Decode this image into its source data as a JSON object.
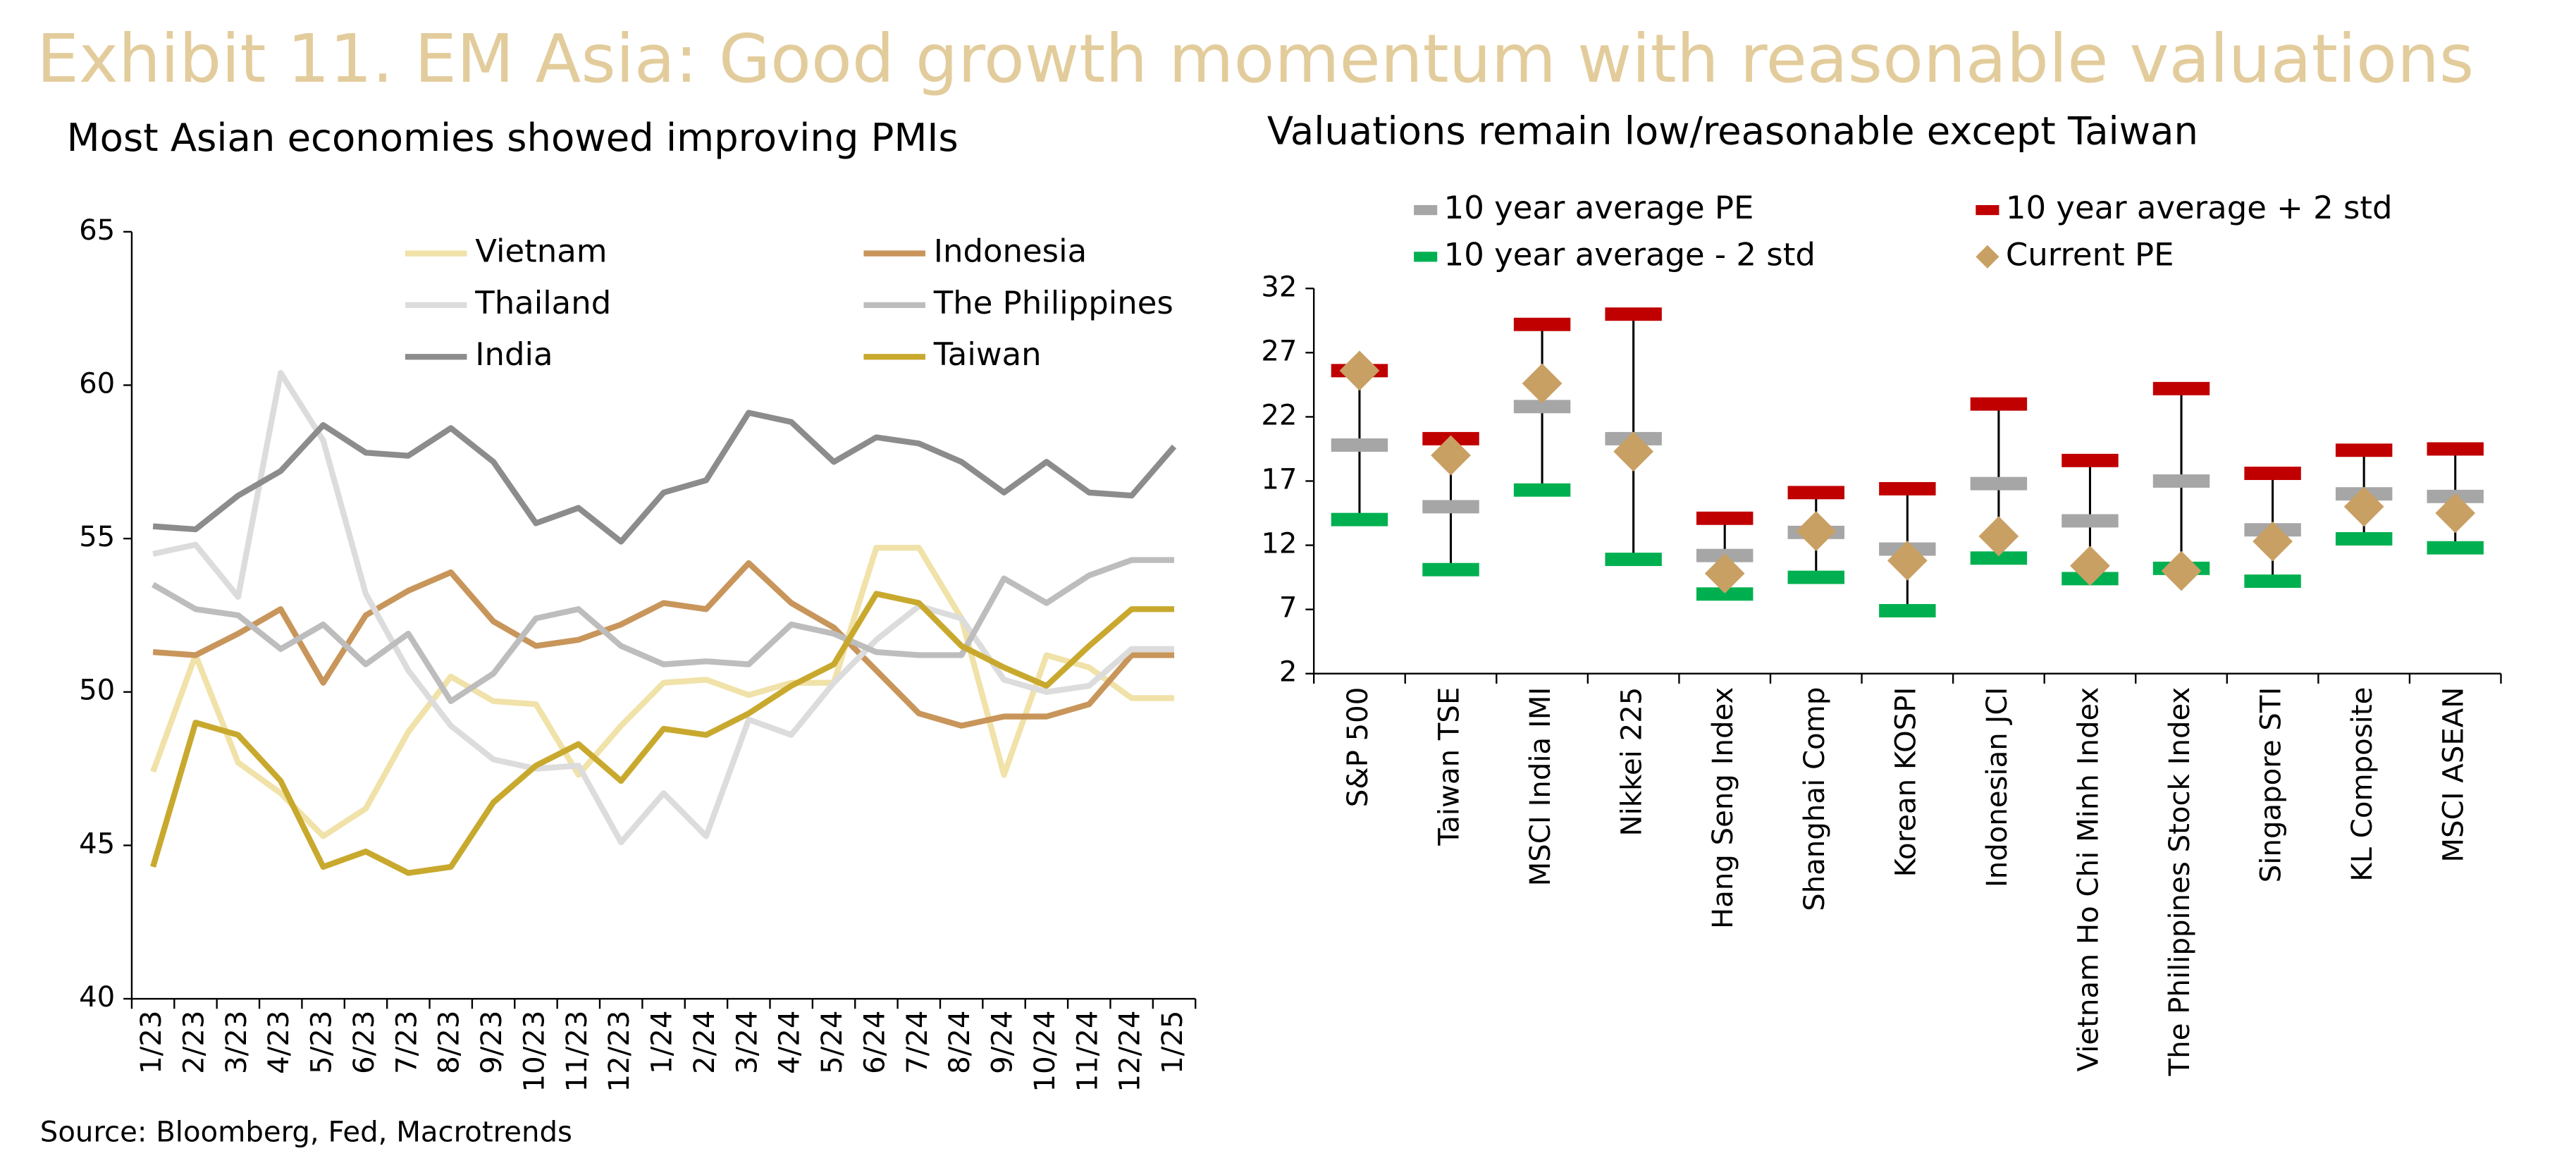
{
  "title": "Exhibit 11. EM Asia: Good growth momentum with reasonable valuations",
  "source": "Source: Bloomberg, Fed, Macrotrends",
  "chart_data": [
    {
      "type": "line",
      "title": "Most Asian economies showed improving PMIs",
      "categories": [
        "1/23",
        "2/23",
        "3/23",
        "4/23",
        "5/23",
        "6/23",
        "7/23",
        "8/23",
        "9/23",
        "10/23",
        "11/23",
        "12/23",
        "1/24",
        "2/24",
        "3/24",
        "4/24",
        "5/24",
        "6/24",
        "7/24",
        "8/24",
        "9/24",
        "10/24",
        "11/24",
        "12/24",
        "1/25"
      ],
      "ylim": [
        40,
        65
      ],
      "yticks": [
        40,
        45,
        50,
        55,
        60,
        65
      ],
      "series": [
        {
          "name": "Vietnam",
          "color": "#f0e2a8",
          "values": [
            47.4,
            51.2,
            47.7,
            46.7,
            45.3,
            46.2,
            48.7,
            50.5,
            49.7,
            49.6,
            47.3,
            48.9,
            50.3,
            50.4,
            49.9,
            50.3,
            50.3,
            54.7,
            54.7,
            52.4,
            47.3,
            51.2,
            50.8,
            49.8,
            49.8
          ]
        },
        {
          "name": "Indonesia",
          "color": "#c8955a",
          "values": [
            51.3,
            51.2,
            51.9,
            52.7,
            50.3,
            52.5,
            53.3,
            53.9,
            52.3,
            51.5,
            51.7,
            52.2,
            52.9,
            52.7,
            54.2,
            52.9,
            52.1,
            50.7,
            49.3,
            48.9,
            49.2,
            49.2,
            49.6,
            51.2,
            51.2
          ]
        },
        {
          "name": "Thailand",
          "color": "#dcdcdc",
          "values": [
            54.5,
            54.8,
            53.1,
            60.4,
            58.2,
            53.2,
            50.7,
            48.9,
            47.8,
            47.5,
            47.6,
            45.1,
            46.7,
            45.3,
            49.1,
            48.6,
            50.3,
            51.7,
            52.8,
            52.4,
            50.4,
            50.0,
            50.2,
            51.4,
            51.4
          ]
        },
        {
          "name": "The Philippines",
          "color": "#bdbdbd",
          "values": [
            53.5,
            52.7,
            52.5,
            51.4,
            52.2,
            50.9,
            51.9,
            49.7,
            50.6,
            52.4,
            52.7,
            51.5,
            50.9,
            51.0,
            50.9,
            52.2,
            51.9,
            51.3,
            51.2,
            51.2,
            53.7,
            52.9,
            53.8,
            54.3,
            54.3
          ]
        },
        {
          "name": "India",
          "color": "#8c8c8c",
          "values": [
            55.4,
            55.3,
            56.4,
            57.2,
            58.7,
            57.8,
            57.7,
            58.6,
            57.5,
            55.5,
            56.0,
            54.9,
            56.5,
            56.9,
            59.1,
            58.8,
            57.5,
            58.3,
            58.1,
            57.5,
            56.5,
            57.5,
            56.5,
            56.4,
            58.0
          ]
        },
        {
          "name": "Taiwan",
          "color": "#c8a92e",
          "values": [
            44.3,
            49.0,
            48.6,
            47.1,
            44.3,
            44.8,
            44.1,
            44.3,
            46.4,
            47.6,
            48.3,
            47.1,
            48.8,
            48.6,
            49.3,
            50.2,
            50.9,
            53.2,
            52.9,
            51.5,
            50.8,
            50.2,
            51.5,
            52.7,
            52.7
          ]
        }
      ]
    },
    {
      "type": "range",
      "title": "Valuations remain low/reasonable except Taiwan",
      "categories": [
        "S&P 500",
        "Taiwan TSE",
        "MSCI India IMI",
        "Nikkei 225",
        "Hang Seng Index",
        "Shanghai Comp",
        "Korean KOSPI",
        "Indonesian JCI",
        "Vietnam Ho Chi Minh Index",
        "The Philippines Stock Index",
        "Singapore STI",
        "KL Composite",
        "MSCI ASEAN"
      ],
      "ylim": [
        2,
        32
      ],
      "yticks": [
        2,
        7,
        12,
        17,
        22,
        27,
        32
      ],
      "series": [
        {
          "name": "10 year average PE",
          "color": "#a6a6a6",
          "values": [
            19.8,
            15.0,
            22.8,
            20.3,
            11.2,
            13.0,
            11.7,
            16.8,
            13.9,
            17.0,
            13.2,
            16.0,
            15.8
          ]
        },
        {
          "name": "10 year average + 2 std",
          "color": "#c00000",
          "values": [
            25.6,
            20.3,
            29.2,
            30.0,
            14.1,
            16.1,
            16.4,
            23.0,
            18.6,
            24.2,
            17.6,
            19.4,
            19.5
          ]
        },
        {
          "name": "10 year average - 2 std",
          "color": "#00b050",
          "values": [
            14.0,
            10.1,
            16.3,
            10.9,
            8.2,
            9.5,
            6.9,
            11.0,
            9.4,
            10.2,
            9.2,
            12.5,
            11.8
          ]
        },
        {
          "name": "Current PE",
          "color": "#c9a063",
          "values": [
            25.6,
            19.0,
            24.6,
            19.3,
            9.8,
            13.1,
            10.8,
            12.7,
            10.4,
            10.0,
            12.3,
            15.0,
            14.5
          ]
        }
      ]
    }
  ]
}
